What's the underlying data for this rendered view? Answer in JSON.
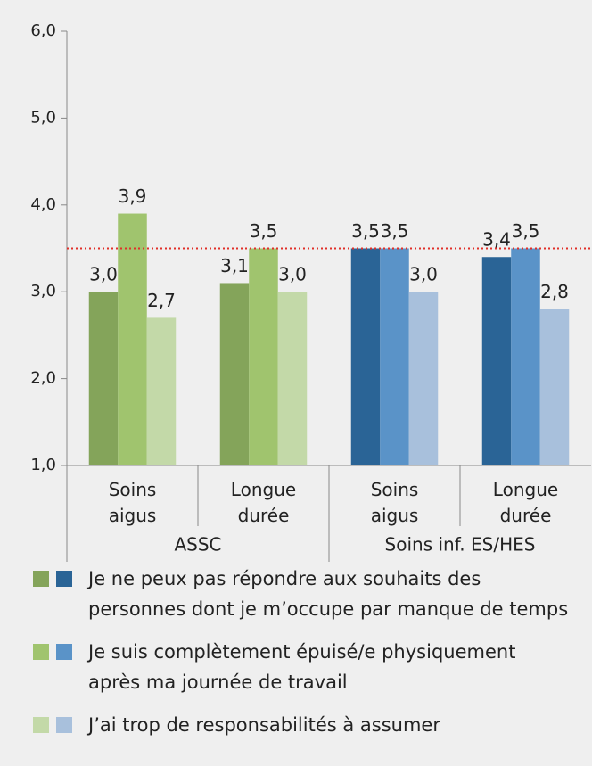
{
  "chart_data": {
    "type": "bar",
    "categories": [
      "Soins aigus",
      "Longue durée",
      "Soins aigus",
      "Longue durée"
    ],
    "groups": [
      "ASSC",
      "Soins inf. ES/HES"
    ],
    "series": [
      {
        "name": "Je ne peux pas répondre aux souhaits des personnes dont je m’occupe par manque de temps",
        "colors": [
          "#84a45a",
          "#84a45a",
          "#2a6496",
          "#2a6496"
        ],
        "values": [
          3.0,
          3.1,
          3.5,
          3.4
        ],
        "value_labels": [
          "3,0",
          "3,1",
          "3,5",
          "3,4"
        ]
      },
      {
        "name": "Je suis complètement épuisé/e physiquement après ma journée de travail",
        "colors": [
          "#a0c46e",
          "#a0c46e",
          "#5a93c8",
          "#5a93c8"
        ],
        "values": [
          3.9,
          3.5,
          3.5,
          3.5
        ],
        "value_labels": [
          "3,9",
          "3,5",
          "3,5",
          "3,5"
        ]
      },
      {
        "name": "J’ai trop de responsabilités à assumer",
        "colors": [
          "#c3d9a8",
          "#c3d9a8",
          "#a8c0dc",
          "#a8c0dc"
        ],
        "values": [
          2.7,
          3.0,
          3.0,
          2.8
        ],
        "value_labels": [
          "2,7",
          "3,0",
          "3,0",
          "2,8"
        ]
      }
    ],
    "ylim": [
      1,
      6
    ],
    "yticks": [
      {
        "value": 1,
        "label": "1,0"
      },
      {
        "value": 2,
        "label": "2,0"
      },
      {
        "value": 3,
        "label": "3,0"
      },
      {
        "value": 4,
        "label": "4,0"
      },
      {
        "value": 5,
        "label": "5,0"
      },
      {
        "value": 6,
        "label": "6,0"
      }
    ],
    "reference_line": {
      "value": 3.5,
      "color": "#e0302a"
    }
  }
}
